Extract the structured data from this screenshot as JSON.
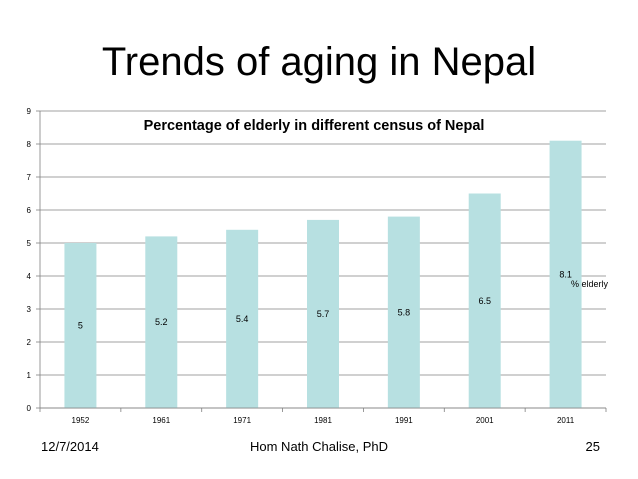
{
  "slide": {
    "title": "Trends of aging in Nepal",
    "footer_date": "12/7/2014",
    "footer_author": "Hom Nath Chalise, PhD",
    "footer_page": "25"
  },
  "chart_data": {
    "type": "bar",
    "title": "Percentage of elderly in different census of Nepal",
    "categories": [
      "1952",
      "1961",
      "1971",
      "1981",
      "1991",
      "2001",
      "2011"
    ],
    "series": [
      {
        "name": "% elderly",
        "values": [
          5,
          5.2,
          5.4,
          5.7,
          5.8,
          6.5,
          8.1
        ]
      }
    ],
    "data_labels": [
      "5",
      "5.2",
      "5.4",
      "5.7",
      "5.8",
      "6.5",
      "8.1"
    ],
    "ylim": [
      0,
      9
    ],
    "yticks": [
      "0",
      "1",
      "2",
      "3",
      "4",
      "5",
      "6",
      "7",
      "8",
      "9"
    ],
    "grid": true,
    "legend": "right",
    "bar_color": "#b7e0e1",
    "grid_color": "#808080"
  }
}
